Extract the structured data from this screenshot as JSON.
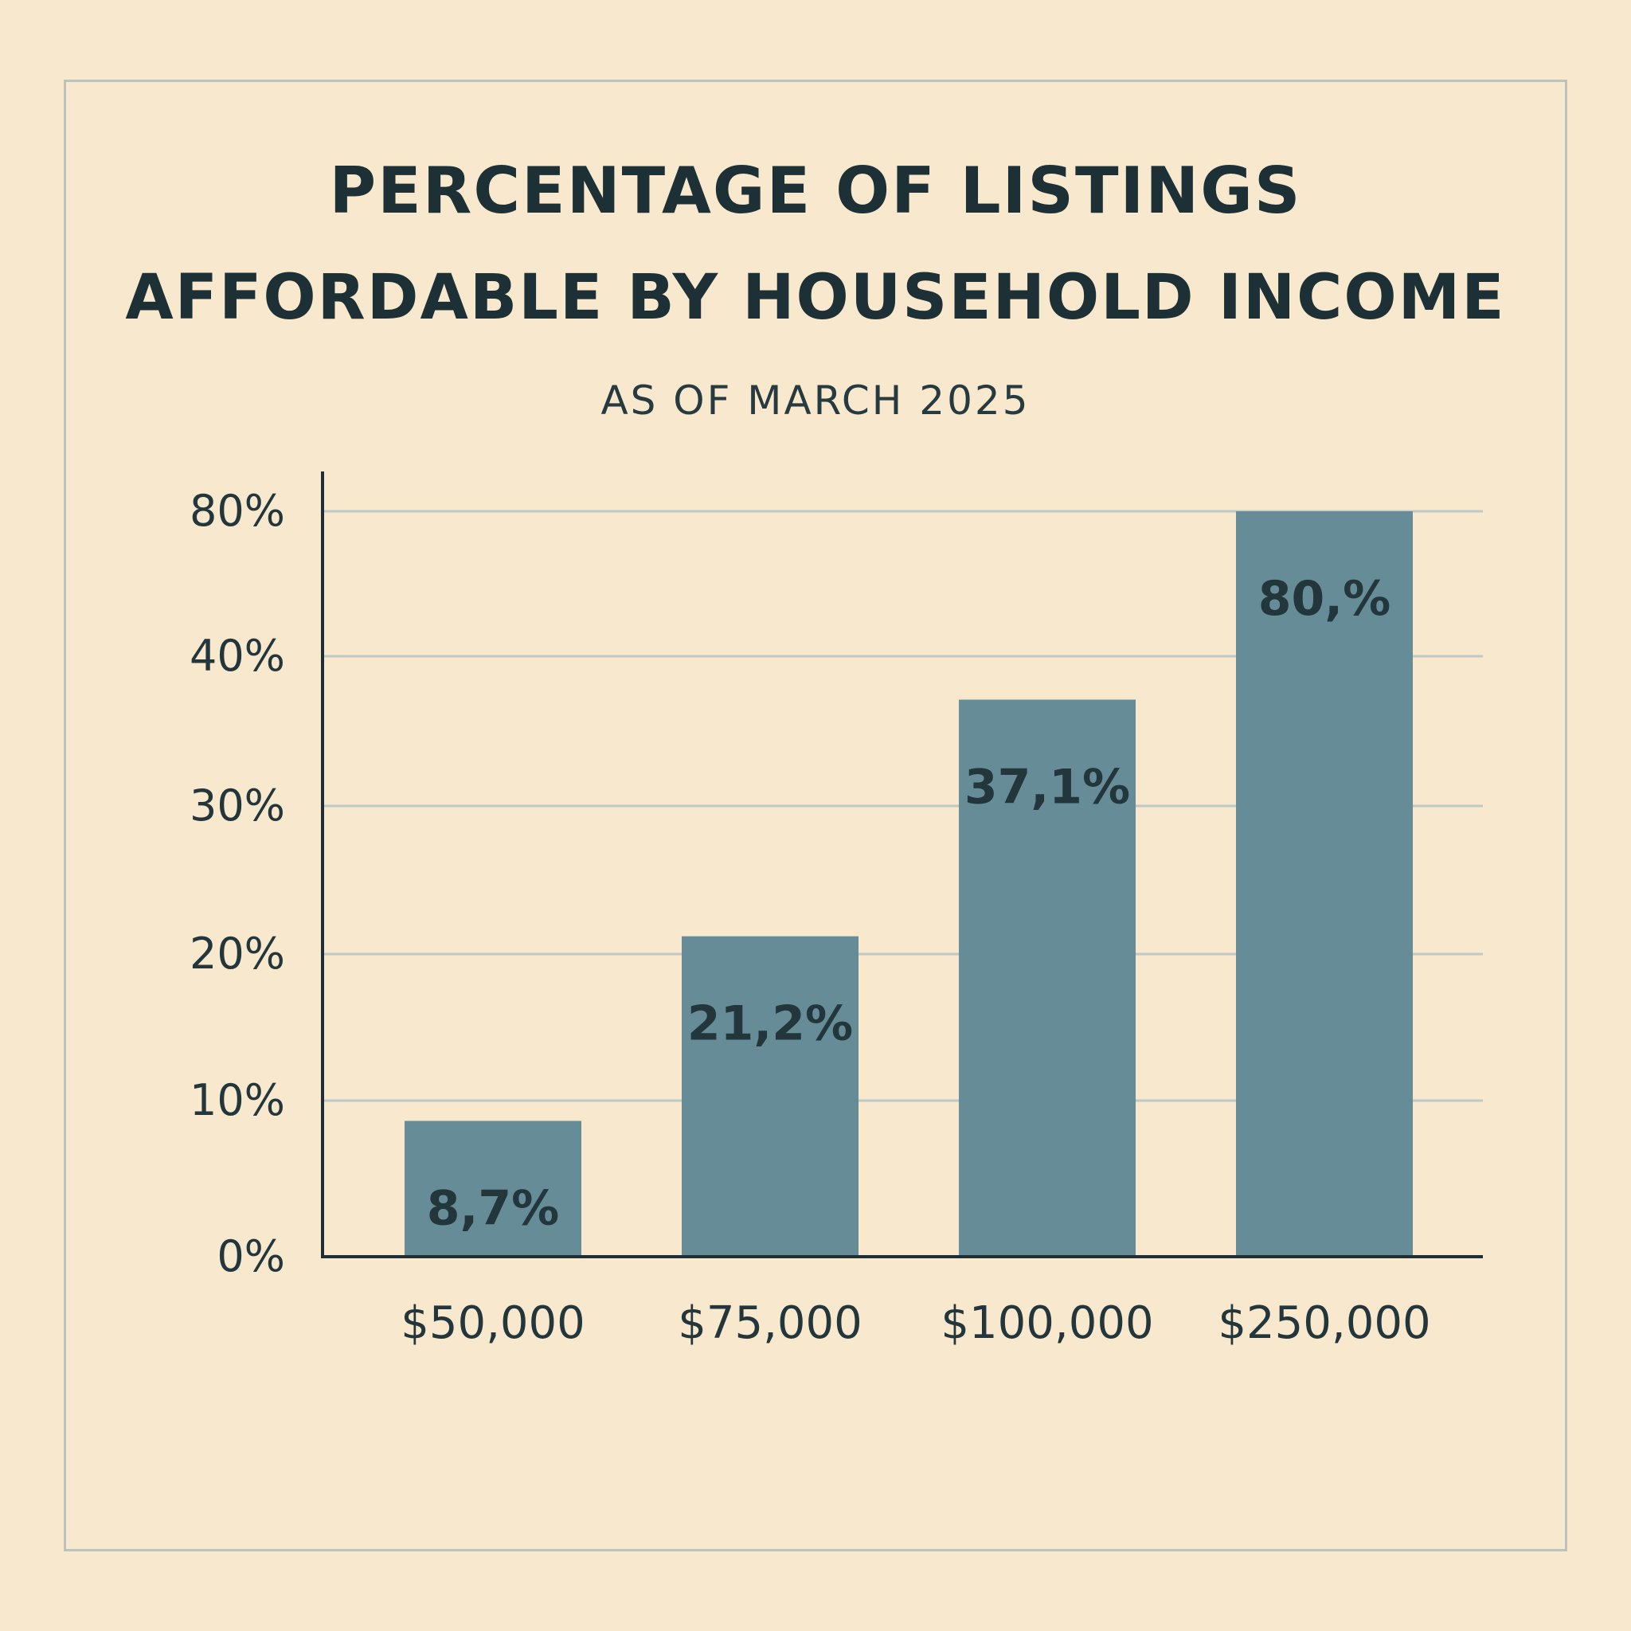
{
  "chart_data": {
    "type": "bar",
    "title": [
      "PERCENTAGE OF LISTINGS",
      "AFFORDABLE BY HOUSEHOLD INCOME"
    ],
    "subtitle": "AS OF MARCH 2025",
    "categories": [
      "$50,000",
      "$75,000",
      "$100,000",
      "$250,000"
    ],
    "values": [
      8.7,
      21.2,
      37.1,
      80
    ],
    "data_labels": [
      "8,7%",
      "21,2%",
      "37,1%",
      "80,%"
    ],
    "y_ticks": [
      {
        "label": "0%",
        "value": 0
      },
      {
        "label": "10%",
        "value": 10
      },
      {
        "label": "20%",
        "value": 20
      },
      {
        "label": "30%",
        "value": 30
      },
      {
        "label": "40%",
        "value": 40
      },
      {
        "label": "80%",
        "value": 80
      }
    ],
    "bar_color": "#668c97",
    "grid": true,
    "legend": "none"
  }
}
